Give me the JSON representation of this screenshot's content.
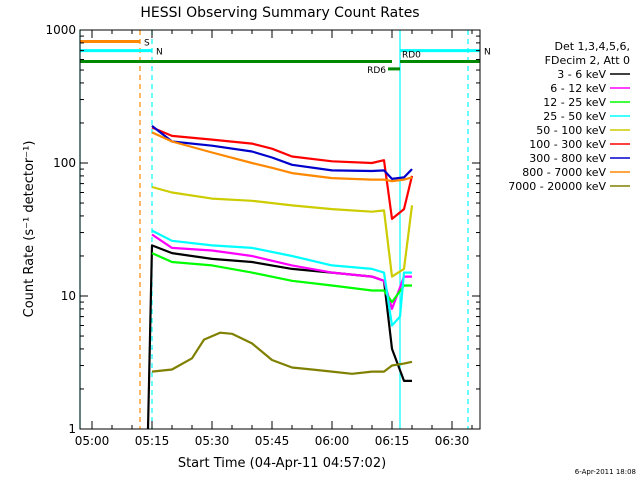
{
  "chart_data": {
    "type": "line",
    "title": "HESSI Observing Summary Count Rates",
    "xlabel": "Start Time (04-Apr-11 04:57:02)",
    "ylabel": "Count Rate (s⁻¹ detector⁻¹)",
    "xlim": [
      "04:57",
      "06:37"
    ],
    "ylim": [
      1,
      1000
    ],
    "yscale": "log",
    "x_ticks": [
      "05:00",
      "05:15",
      "05:30",
      "05:45",
      "06:00",
      "06:15",
      "06:30"
    ],
    "y_ticks": [
      "1",
      "10",
      "100",
      "1000"
    ],
    "legend_header": [
      "Det 1,3,4,5,6,",
      "FDecim 2, Att 0"
    ],
    "legend_position": "right",
    "footer": "6-Apr-2011 18:08",
    "series": [
      {
        "name": "3 - 6 keV",
        "color": "#000000",
        "x": [
          "05:14",
          "05:15",
          "05:20",
          "05:30",
          "05:40",
          "05:50",
          "06:00",
          "06:10",
          "06:13",
          "06:15",
          "06:18",
          "06:20"
        ],
        "y": [
          1,
          24,
          21,
          19,
          18,
          16,
          15,
          14,
          13,
          4,
          2.3,
          2.3
        ]
      },
      {
        "name": "6 - 12 keV",
        "color": "#ff00ff",
        "x": [
          "05:15",
          "05:20",
          "05:30",
          "05:40",
          "05:50",
          "06:00",
          "06:10",
          "06:13",
          "06:15",
          "06:18",
          "06:20"
        ],
        "y": [
          29,
          23,
          22,
          20,
          17,
          15,
          14,
          13,
          8,
          14,
          14
        ]
      },
      {
        "name": "12 - 25 keV",
        "color": "#00ff00",
        "x": [
          "05:15",
          "05:20",
          "05:30",
          "05:40",
          "05:50",
          "06:00",
          "06:10",
          "06:13",
          "06:15",
          "06:18",
          "06:20"
        ],
        "y": [
          21,
          18,
          17,
          15,
          13,
          12,
          11,
          11,
          9,
          12,
          12
        ]
      },
      {
        "name": "25 - 50 keV",
        "color": "#00ffff",
        "x": [
          "05:15",
          "05:20",
          "05:30",
          "05:40",
          "05:50",
          "06:00",
          "06:10",
          "06:13",
          "06:15",
          "06:17",
          "06:18",
          "06:20"
        ],
        "y": [
          31,
          26,
          24,
          23,
          20,
          17,
          16,
          15,
          6,
          7,
          15,
          15
        ]
      },
      {
        "name": "50 - 100 keV",
        "color": "#cccc00",
        "x": [
          "05:15",
          "05:20",
          "05:30",
          "05:40",
          "05:50",
          "06:00",
          "06:10",
          "06:13",
          "06:15",
          "06:18",
          "06:20"
        ],
        "y": [
          66,
          60,
          54,
          52,
          48,
          45,
          43,
          44,
          14,
          16,
          48
        ]
      },
      {
        "name": "100 - 300 keV",
        "color": "#ff0000",
        "x": [
          "05:15",
          "05:20",
          "05:30",
          "05:40",
          "05:45",
          "05:50",
          "06:00",
          "06:10",
          "06:13",
          "06:15",
          "06:18",
          "06:20"
        ],
        "y": [
          185,
          160,
          150,
          140,
          128,
          112,
          103,
          100,
          105,
          38,
          45,
          80
        ]
      },
      {
        "name": "300 - 800 keV",
        "color": "#0000cc",
        "x": [
          "05:15",
          "05:20",
          "05:30",
          "05:40",
          "05:45",
          "05:50",
          "06:00",
          "06:10",
          "06:13",
          "06:15",
          "06:18",
          "06:20"
        ],
        "y": [
          190,
          145,
          135,
          122,
          110,
          97,
          88,
          87,
          88,
          76,
          78,
          90
        ]
      },
      {
        "name": "800 - 7000 keV",
        "color": "#ff8800",
        "x": [
          "05:15",
          "05:20",
          "05:30",
          "05:40",
          "05:45",
          "05:50",
          "06:00",
          "06:10",
          "06:13",
          "06:15",
          "06:18",
          "06:20"
        ],
        "y": [
          170,
          145,
          120,
          100,
          92,
          84,
          77,
          75,
          75,
          73,
          75,
          78
        ]
      },
      {
        "name": "7000 - 20000 keV",
        "color": "#808000",
        "x": [
          "05:15",
          "05:20",
          "05:25",
          "05:28",
          "05:32",
          "05:35",
          "05:40",
          "05:45",
          "05:50",
          "05:55",
          "06:00",
          "06:05",
          "06:10",
          "06:13",
          "06:15",
          "06:18",
          "06:20"
        ],
        "y": [
          2.7,
          2.8,
          3.4,
          4.7,
          5.3,
          5.2,
          4.4,
          3.3,
          2.9,
          2.8,
          2.7,
          2.6,
          2.7,
          2.7,
          3.0,
          3.1,
          3.2
        ]
      }
    ],
    "flags": [
      {
        "label": "S",
        "color": "#ff8800",
        "x_start": "04:57",
        "x_end": "05:12",
        "y": 820
      },
      {
        "label": "N",
        "color": "#00ffff",
        "x_start": "04:57",
        "x_end": "05:15",
        "y": 700
      },
      {
        "label": "N",
        "color": "#00ffff",
        "x_start": "06:17",
        "x_end": "06:37",
        "y": 700
      },
      {
        "label": "",
        "color": "#008800",
        "x_start": "04:57",
        "x_end": "06:15",
        "y": 580
      },
      {
        "label": "RD0",
        "color": "#008800",
        "x_start": "06:17",
        "x_end": "06:37",
        "y": 580
      },
      {
        "label": "RD6",
        "color": "#008800",
        "x_start": "06:14",
        "x_end": "06:17",
        "y": 510
      }
    ],
    "vlines": [
      {
        "x": "04:57",
        "color": "#00ffff",
        "style": "solid"
      },
      {
        "x": "05:12",
        "color": "#ff8800",
        "style": "dashed"
      },
      {
        "x": "05:15",
        "color": "#00ffff",
        "style": "dashed"
      },
      {
        "x": "06:17",
        "color": "#00ffff",
        "style": "solid"
      },
      {
        "x": "06:34",
        "color": "#00ffff",
        "style": "dashed"
      }
    ]
  }
}
